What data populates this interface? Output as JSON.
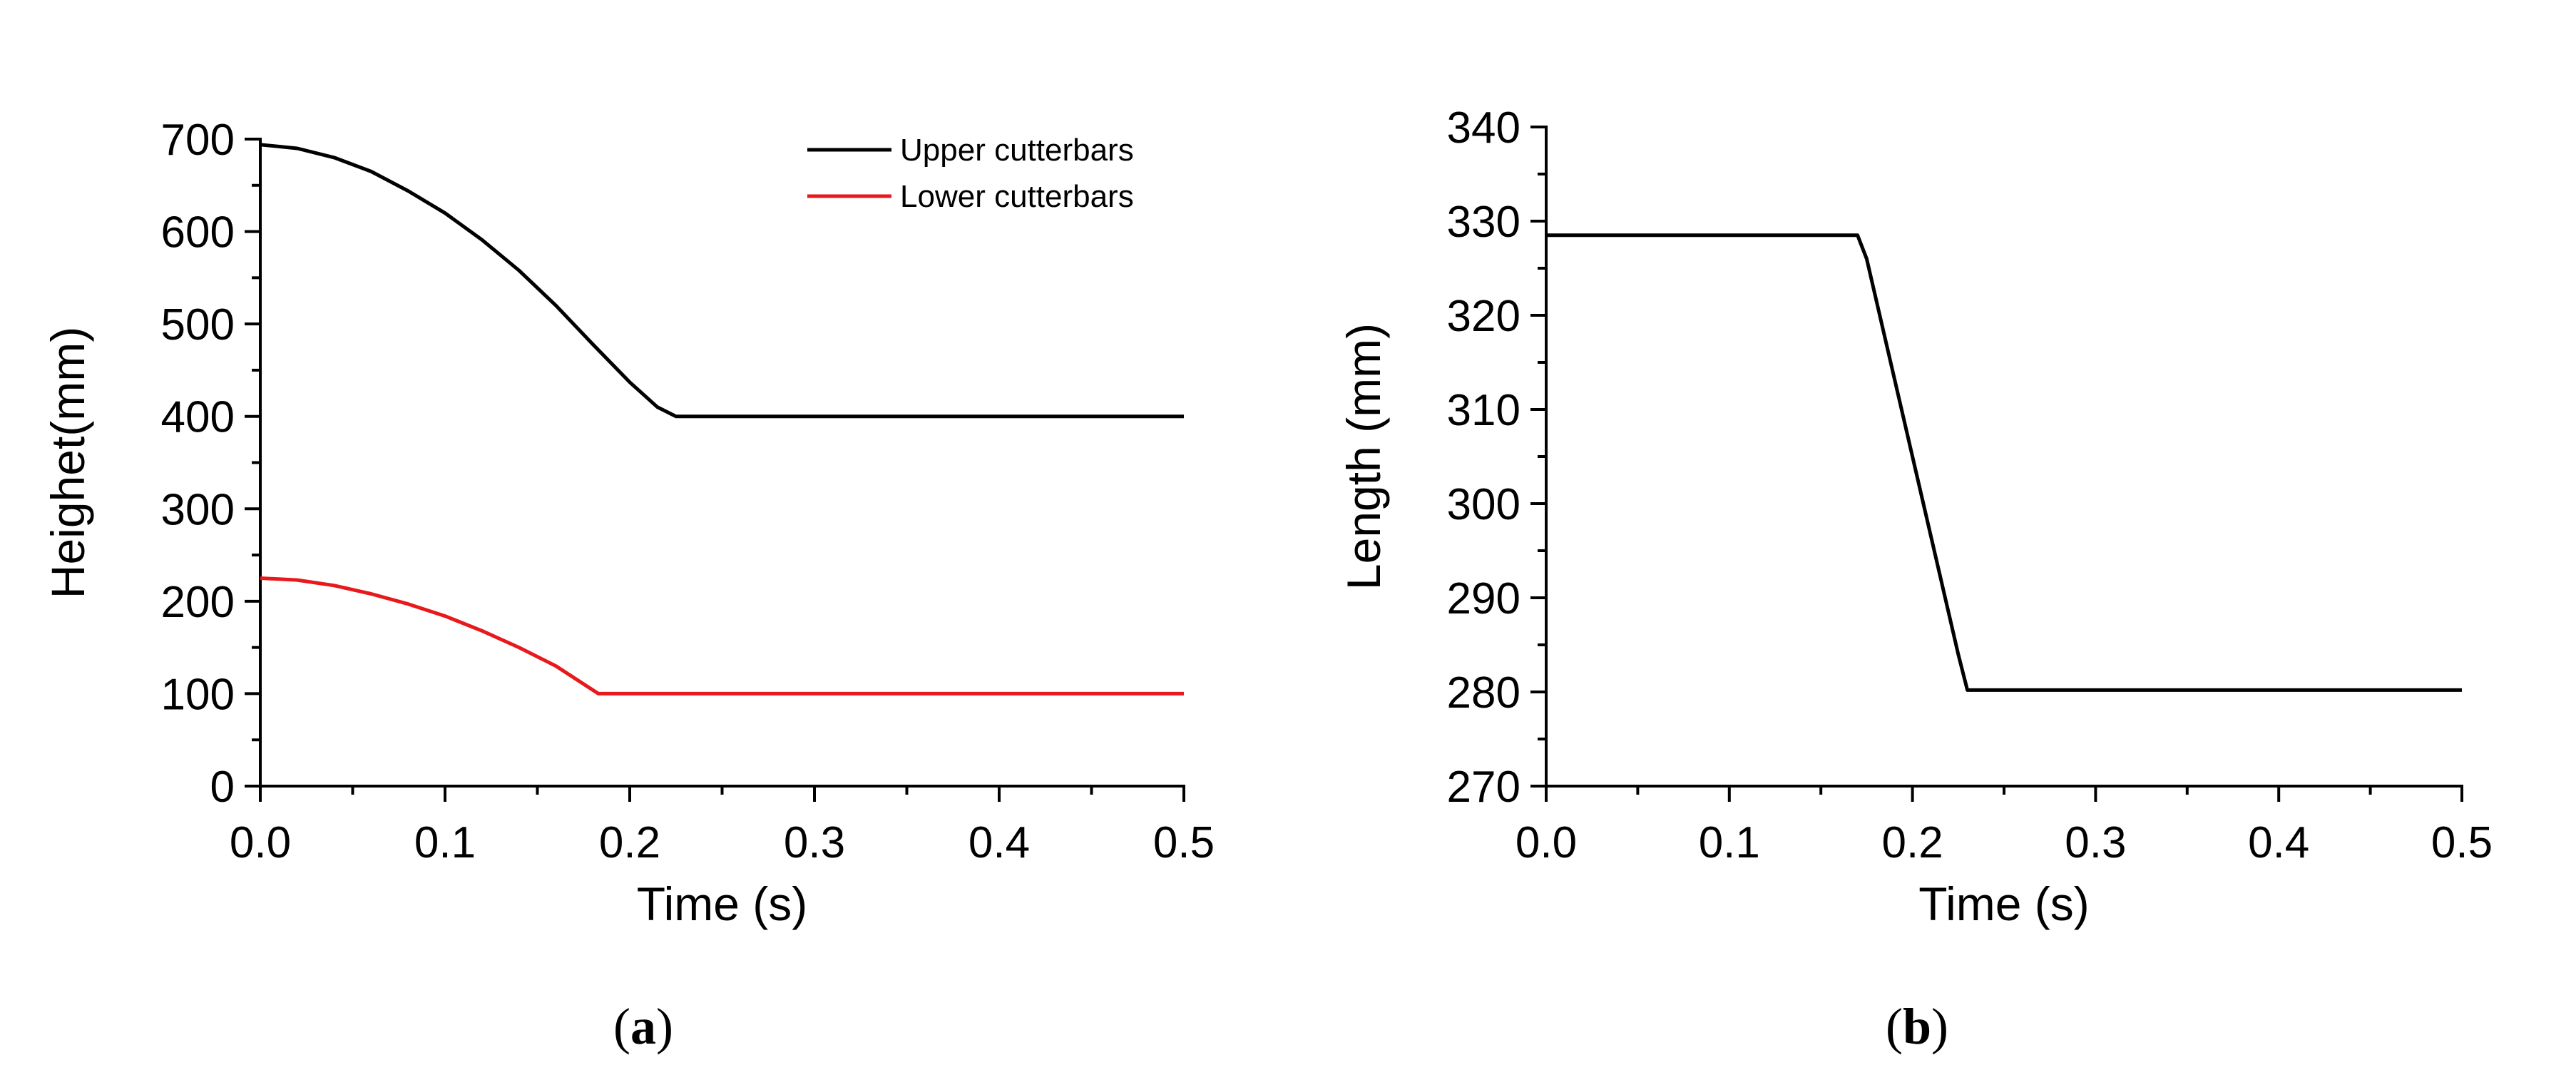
{
  "chart_data": [
    {
      "type": "line",
      "panel_label": "a",
      "xlabel": "Time (s)",
      "ylabel": "Heighet(mm)",
      "xlim": [
        0,
        0.5
      ],
      "ylim": [
        0,
        700
      ],
      "xticks": [
        0.0,
        0.1,
        0.2,
        0.3,
        0.4,
        0.5
      ],
      "xtick_labels": [
        "0.0",
        "0.1",
        "0.2",
        "0.3",
        "0.4",
        "0.5"
      ],
      "yticks": [
        0,
        100,
        200,
        300,
        400,
        500,
        600,
        700
      ],
      "ytick_labels": [
        "0",
        "100",
        "200",
        "300",
        "400",
        "500",
        "600",
        "700"
      ],
      "grid": false,
      "legend_position": "top-right",
      "series": [
        {
          "name": "Upper cutterbars",
          "color": "#000000",
          "x": [
            0.0,
            0.02,
            0.04,
            0.06,
            0.08,
            0.1,
            0.12,
            0.14,
            0.16,
            0.18,
            0.2,
            0.215,
            0.225,
            0.23,
            0.26,
            0.3,
            0.35,
            0.4,
            0.45,
            0.5
          ],
          "y": [
            694,
            690,
            680,
            665,
            644,
            620,
            591,
            558,
            520,
            478,
            437,
            410,
            400,
            400,
            400,
            400,
            400,
            400,
            400,
            400
          ]
        },
        {
          "name": "Lower cutterbars",
          "color": "#e8191c",
          "x": [
            0.0,
            0.02,
            0.04,
            0.06,
            0.08,
            0.1,
            0.12,
            0.14,
            0.16,
            0.183,
            0.2,
            0.25,
            0.3,
            0.35,
            0.4,
            0.45,
            0.5
          ],
          "y": [
            225,
            223,
            217,
            208,
            197,
            184,
            168,
            150,
            130,
            100,
            100,
            100,
            100,
            100,
            100,
            100,
            100
          ]
        }
      ]
    },
    {
      "type": "line",
      "panel_label": "b",
      "xlabel": "Time (s)",
      "ylabel": "Length (mm)",
      "xlim": [
        0,
        0.5
      ],
      "ylim": [
        270,
        340
      ],
      "xticks": [
        0.0,
        0.1,
        0.2,
        0.3,
        0.4,
        0.5
      ],
      "xtick_labels": [
        "0.0",
        "0.1",
        "0.2",
        "0.3",
        "0.4",
        "0.5"
      ],
      "yticks": [
        270,
        280,
        290,
        300,
        310,
        320,
        330,
        340
      ],
      "ytick_labels": [
        "270",
        "280",
        "290",
        "300",
        "310",
        "320",
        "330",
        "340"
      ],
      "grid": false,
      "series": [
        {
          "color": "#000000",
          "x": [
            0.0,
            0.17,
            0.175,
            0.2,
            0.225,
            0.23,
            0.3,
            0.4,
            0.5
          ],
          "y": [
            328.5,
            328.5,
            326,
            305,
            284,
            280.2,
            280.2,
            280.2,
            280.2
          ]
        }
      ]
    }
  ]
}
